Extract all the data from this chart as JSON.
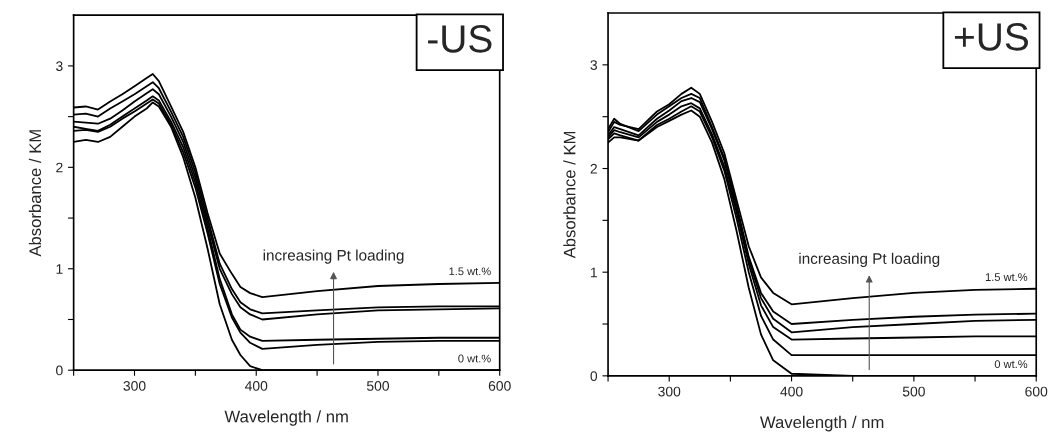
{
  "chart_data": [
    {
      "type": "line",
      "xlabel": "Wavelength / nm",
      "ylabel": "Absorbance / KM",
      "x": [
        250,
        260,
        270,
        280,
        290,
        300,
        310,
        315,
        320,
        330,
        340,
        350,
        360,
        370,
        380,
        387,
        395,
        405,
        450,
        500,
        550,
        600
      ],
      "xlim": [
        250,
        600
      ],
      "ylim": [
        0,
        3.5
      ],
      "xticks": [
        {
          "value": 250,
          "label": null
        },
        300,
        {
          "value": 350,
          "label": null
        },
        400,
        {
          "value": 450,
          "label": null
        },
        500,
        {
          "value": 550,
          "label": null
        },
        600
      ],
      "yticks": [
        0,
        {
          "value": 0.5,
          "label": null
        },
        1,
        {
          "value": 1.5,
          "label": null
        },
        2,
        {
          "value": 2.5,
          "label": null
        },
        3
      ],
      "series": [
        {
          "color": "#000000",
          "values": [
            2.25,
            2.27,
            2.25,
            2.3,
            2.4,
            2.5,
            2.58,
            2.64,
            2.6,
            2.4,
            2.1,
            1.7,
            1.2,
            0.65,
            0.3,
            0.15,
            0.04,
            0.0,
            0.0,
            0.0,
            0.0,
            0.0
          ]
        },
        {
          "color": "#000000",
          "values": [
            2.36,
            2.37,
            2.35,
            2.4,
            2.48,
            2.55,
            2.63,
            2.67,
            2.63,
            2.42,
            2.15,
            1.8,
            1.35,
            0.85,
            0.52,
            0.37,
            0.27,
            0.21,
            0.25,
            0.28,
            0.29,
            0.29
          ]
        },
        {
          "color": "#000000",
          "values": [
            2.4,
            2.38,
            2.36,
            2.42,
            2.5,
            2.58,
            2.66,
            2.7,
            2.66,
            2.45,
            2.2,
            1.85,
            1.4,
            0.9,
            0.55,
            0.4,
            0.33,
            0.29,
            0.3,
            0.31,
            0.32,
            0.32
          ]
        },
        {
          "color": "#000000",
          "values": [
            2.45,
            2.44,
            2.43,
            2.48,
            2.56,
            2.65,
            2.73,
            2.77,
            2.72,
            2.5,
            2.25,
            1.9,
            1.45,
            1.0,
            0.75,
            0.62,
            0.55,
            0.5,
            0.55,
            0.59,
            0.6,
            0.61
          ]
        },
        {
          "color": "#000000",
          "values": [
            2.52,
            2.53,
            2.5,
            2.58,
            2.65,
            2.72,
            2.8,
            2.84,
            2.78,
            2.55,
            2.3,
            1.95,
            1.5,
            1.05,
            0.8,
            0.67,
            0.6,
            0.56,
            0.59,
            0.62,
            0.63,
            0.63
          ]
        },
        {
          "color": "#000000",
          "values": [
            2.59,
            2.6,
            2.57,
            2.65,
            2.72,
            2.8,
            2.88,
            2.92,
            2.85,
            2.6,
            2.35,
            2.0,
            1.55,
            1.15,
            0.95,
            0.82,
            0.76,
            0.72,
            0.78,
            0.83,
            0.85,
            0.86
          ]
        }
      ],
      "annotations": [
        "-US",
        "increasing Pt loading",
        {
          "text": "1.5 wt.%",
          "y": 0.86
        },
        {
          "text": "0 wt.%",
          "y": 0.0
        }
      ]
    },
    {
      "type": "line",
      "xlabel": "Wavelength / nm",
      "ylabel": "Absorbance / KM",
      "x": [
        250,
        255,
        260,
        275,
        290,
        300,
        310,
        318,
        325,
        335,
        345,
        355,
        365,
        375,
        385,
        400,
        450,
        500,
        550,
        600
      ],
      "xlim": [
        250,
        600
      ],
      "ylim": [
        0,
        3.5
      ],
      "xticks": [
        {
          "value": 250,
          "label": null
        },
        300,
        {
          "value": 350,
          "label": null
        },
        400,
        {
          "value": 450,
          "label": null
        },
        500,
        {
          "value": 550,
          "label": null
        },
        600
      ],
      "yticks": [
        0,
        {
          "value": 0.5,
          "label": null
        },
        1,
        {
          "value": 1.5,
          "label": null
        },
        2,
        {
          "value": 2.5,
          "label": null
        },
        3
      ],
      "series": [
        {
          "color": "#000000",
          "values": [
            2.25,
            2.3,
            2.3,
            2.27,
            2.4,
            2.46,
            2.52,
            2.56,
            2.5,
            2.25,
            1.9,
            1.4,
            0.85,
            0.4,
            0.15,
            0.02,
            0.0,
            0.0,
            0.0,
            0.0
          ]
        },
        {
          "color": "#000000",
          "values": [
            2.28,
            2.34,
            2.32,
            2.27,
            2.42,
            2.48,
            2.55,
            2.6,
            2.55,
            2.3,
            1.98,
            1.52,
            1.0,
            0.58,
            0.35,
            0.2,
            0.2,
            0.2,
            0.2,
            0.2
          ]
        },
        {
          "color": "#000000",
          "values": [
            2.3,
            2.37,
            2.35,
            2.3,
            2.45,
            2.52,
            2.6,
            2.63,
            2.58,
            2.33,
            2.02,
            1.58,
            1.08,
            0.68,
            0.47,
            0.35,
            0.36,
            0.37,
            0.38,
            0.38
          ]
        },
        {
          "color": "#000000",
          "values": [
            2.32,
            2.4,
            2.38,
            2.32,
            2.48,
            2.56,
            2.65,
            2.68,
            2.64,
            2.38,
            2.08,
            1.62,
            1.12,
            0.75,
            0.55,
            0.42,
            0.47,
            0.5,
            0.53,
            0.54
          ]
        },
        {
          "color": "#000000",
          "values": [
            2.38,
            2.48,
            2.43,
            2.36,
            2.52,
            2.6,
            2.68,
            2.72,
            2.68,
            2.4,
            2.1,
            1.65,
            1.15,
            0.8,
            0.62,
            0.5,
            0.54,
            0.57,
            0.59,
            0.6
          ]
        },
        {
          "color": "#000000",
          "values": [
            2.35,
            2.45,
            2.42,
            2.38,
            2.55,
            2.62,
            2.72,
            2.78,
            2.72,
            2.45,
            2.15,
            1.7,
            1.25,
            0.95,
            0.8,
            0.69,
            0.75,
            0.8,
            0.83,
            0.84
          ]
        }
      ],
      "annotations": [
        "+US",
        "increasing Pt loading",
        {
          "text": "1.5 wt.%",
          "y": 0.84
        },
        {
          "text": "0 wt.%",
          "y": 0.0
        }
      ]
    }
  ]
}
